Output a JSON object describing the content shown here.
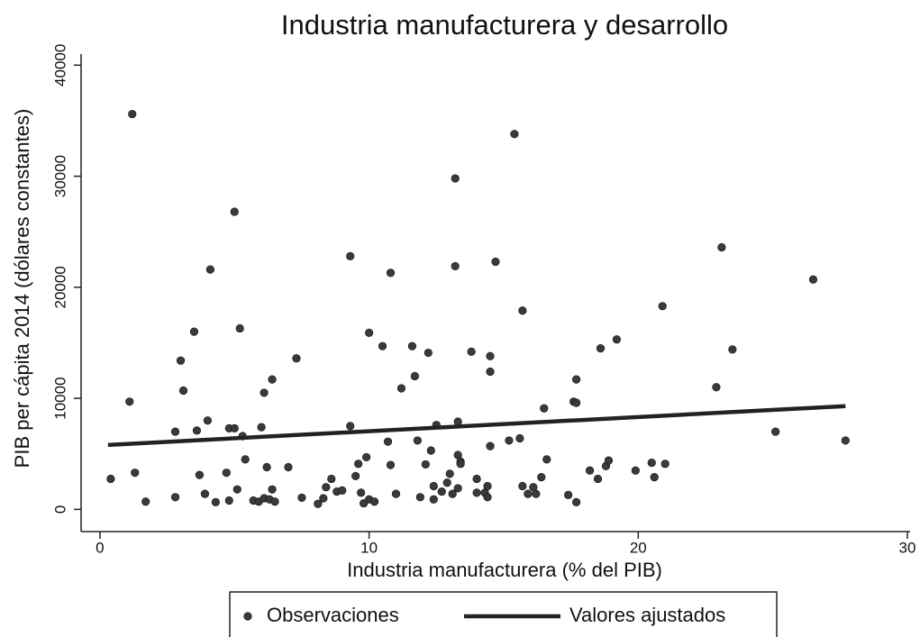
{
  "chart_data": {
    "type": "scatter",
    "title": "Industria manufacturera y desarrollo",
    "x_label": "Industria manufacturera (% del PIB)",
    "y_label": "PIB per cápita 2014 (dólares constantes)",
    "xlim": [
      -0.7,
      30.1
    ],
    "ylim": [
      -2000,
      41000
    ],
    "xticks": [
      0,
      10,
      20,
      30
    ],
    "yticks": [
      0,
      10000,
      20000,
      30000,
      40000
    ],
    "grid": false,
    "legend": "bottom",
    "series": [
      {
        "name": "Observaciones",
        "style": "points",
        "color": "#3a3a3a",
        "x": [
          0.4,
          1.1,
          1.2,
          1.3,
          1.7,
          2.8,
          2.8,
          3.0,
          3.1,
          3.5,
          3.6,
          3.7,
          3.9,
          4.0,
          4.1,
          4.3,
          4.7,
          4.8,
          4.8,
          5.0,
          5.0,
          5.1,
          5.2,
          5.3,
          5.4,
          5.7,
          5.9,
          6.0,
          6.1,
          6.1,
          6.2,
          6.3,
          6.4,
          6.4,
          6.5,
          7.0,
          7.3,
          7.5,
          8.1,
          8.3,
          8.4,
          8.6,
          8.8,
          9.0,
          9.3,
          9.3,
          9.5,
          9.6,
          9.7,
          9.8,
          9.9,
          10.0,
          10.0,
          10.2,
          10.5,
          10.7,
          10.8,
          10.8,
          11.0,
          11.2,
          11.6,
          11.7,
          11.8,
          11.9,
          12.1,
          12.2,
          12.3,
          12.4,
          12.4,
          12.5,
          12.7,
          12.9,
          13.0,
          13.1,
          13.2,
          13.2,
          13.3,
          13.3,
          13.3,
          13.4,
          13.4,
          13.8,
          14.0,
          14.0,
          14.3,
          14.4,
          14.4,
          14.5,
          14.5,
          14.5,
          14.7,
          15.2,
          15.4,
          15.6,
          15.7,
          15.7,
          15.9,
          16.1,
          16.2,
          16.4,
          16.5,
          16.6,
          17.4,
          17.6,
          17.7,
          17.7,
          17.7,
          18.2,
          18.5,
          18.6,
          18.8,
          18.9,
          19.2,
          19.9,
          20.5,
          20.6,
          20.9,
          21.0,
          22.9,
          23.1,
          23.5,
          25.1,
          26.5,
          27.7
        ],
        "values": [
          2750,
          9700,
          35600,
          3300,
          700,
          1100,
          7000,
          13400,
          10700,
          16000,
          7100,
          3100,
          1400,
          8000,
          21600,
          650,
          3300,
          800,
          7300,
          26800,
          7300,
          1800,
          16300,
          6600,
          4500,
          800,
          700,
          7400,
          10500,
          1000,
          3800,
          900,
          1800,
          11700,
          700,
          3800,
          13600,
          1050,
          500,
          1000,
          2000,
          2750,
          1600,
          1700,
          22800,
          7500,
          3000,
          4100,
          1500,
          550,
          4700,
          15900,
          900,
          700,
          14700,
          6100,
          4000,
          21300,
          1400,
          10900,
          14700,
          12000,
          6200,
          1100,
          4050,
          14100,
          5300,
          2100,
          900,
          7600,
          1600,
          2400,
          3200,
          1400,
          29800,
          21900,
          1900,
          7900,
          4900,
          4300,
          4100,
          14200,
          2750,
          1500,
          1500,
          2100,
          1100,
          5700,
          13800,
          12400,
          22300,
          6200,
          33800,
          6400,
          2100,
          17900,
          1400,
          2000,
          1400,
          2900,
          9100,
          4500,
          1300,
          9700,
          650,
          9600,
          11700,
          3500,
          2750,
          14500,
          3900,
          4400,
          15300,
          3500,
          4200,
          2900,
          18300,
          4100,
          11000,
          23600,
          14400,
          7000,
          20700,
          6200
        ]
      },
      {
        "name": "Valores ajustados",
        "style": "line",
        "color": "#222222",
        "x": [
          0.3,
          27.7
        ],
        "values": [
          5800,
          9300
        ]
      }
    ]
  }
}
